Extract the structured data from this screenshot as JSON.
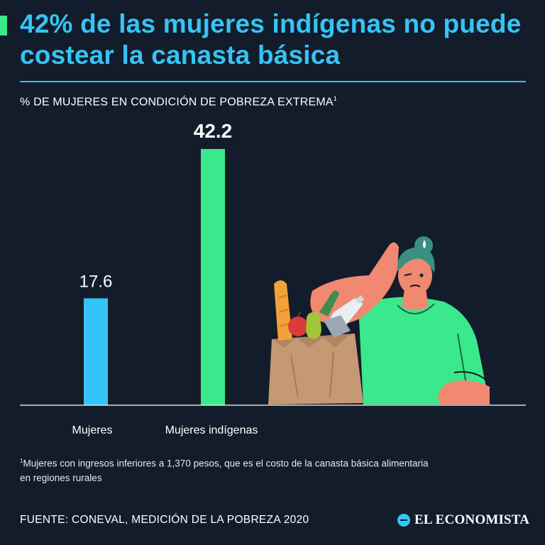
{
  "header": {
    "title": "42% de las mujeres indígenas no puede costear la canasta básica",
    "subtitle": "% DE MUJERES EN CONDICIÓN DE POBREZA EXTREMA",
    "subtitle_mark": "1"
  },
  "colors": {
    "background": "#131c2a",
    "title": "#35c4f5",
    "bar_mujeres": "#35c4f5",
    "bar_indigenas": "#3ae98b"
  },
  "chart_data": {
    "type": "bar",
    "categories": [
      "Mujeres",
      "Mujeres indígenas"
    ],
    "values": [
      17.6,
      42.2
    ],
    "value_labels": [
      "17.6",
      "42.2"
    ],
    "colors": [
      "#35c4f5",
      "#3ae98b"
    ],
    "ylim": [
      0,
      45
    ],
    "grid": false
  },
  "footer": {
    "footnote_mark": "1",
    "footnote_line1": "Mujeres con ingresos inferiores a 1,370 pesos, que es el costo de la canasta básica alimentaria",
    "footnote_line2": "en regiones rurales",
    "source": "FUENTE: CONEVAL, MEDICIÓN DE LA POBREZA 2020",
    "brand": "EL ECONOMISTA"
  },
  "illustration": {
    "subject": "woman-holding-grocery-bag-illustration"
  }
}
